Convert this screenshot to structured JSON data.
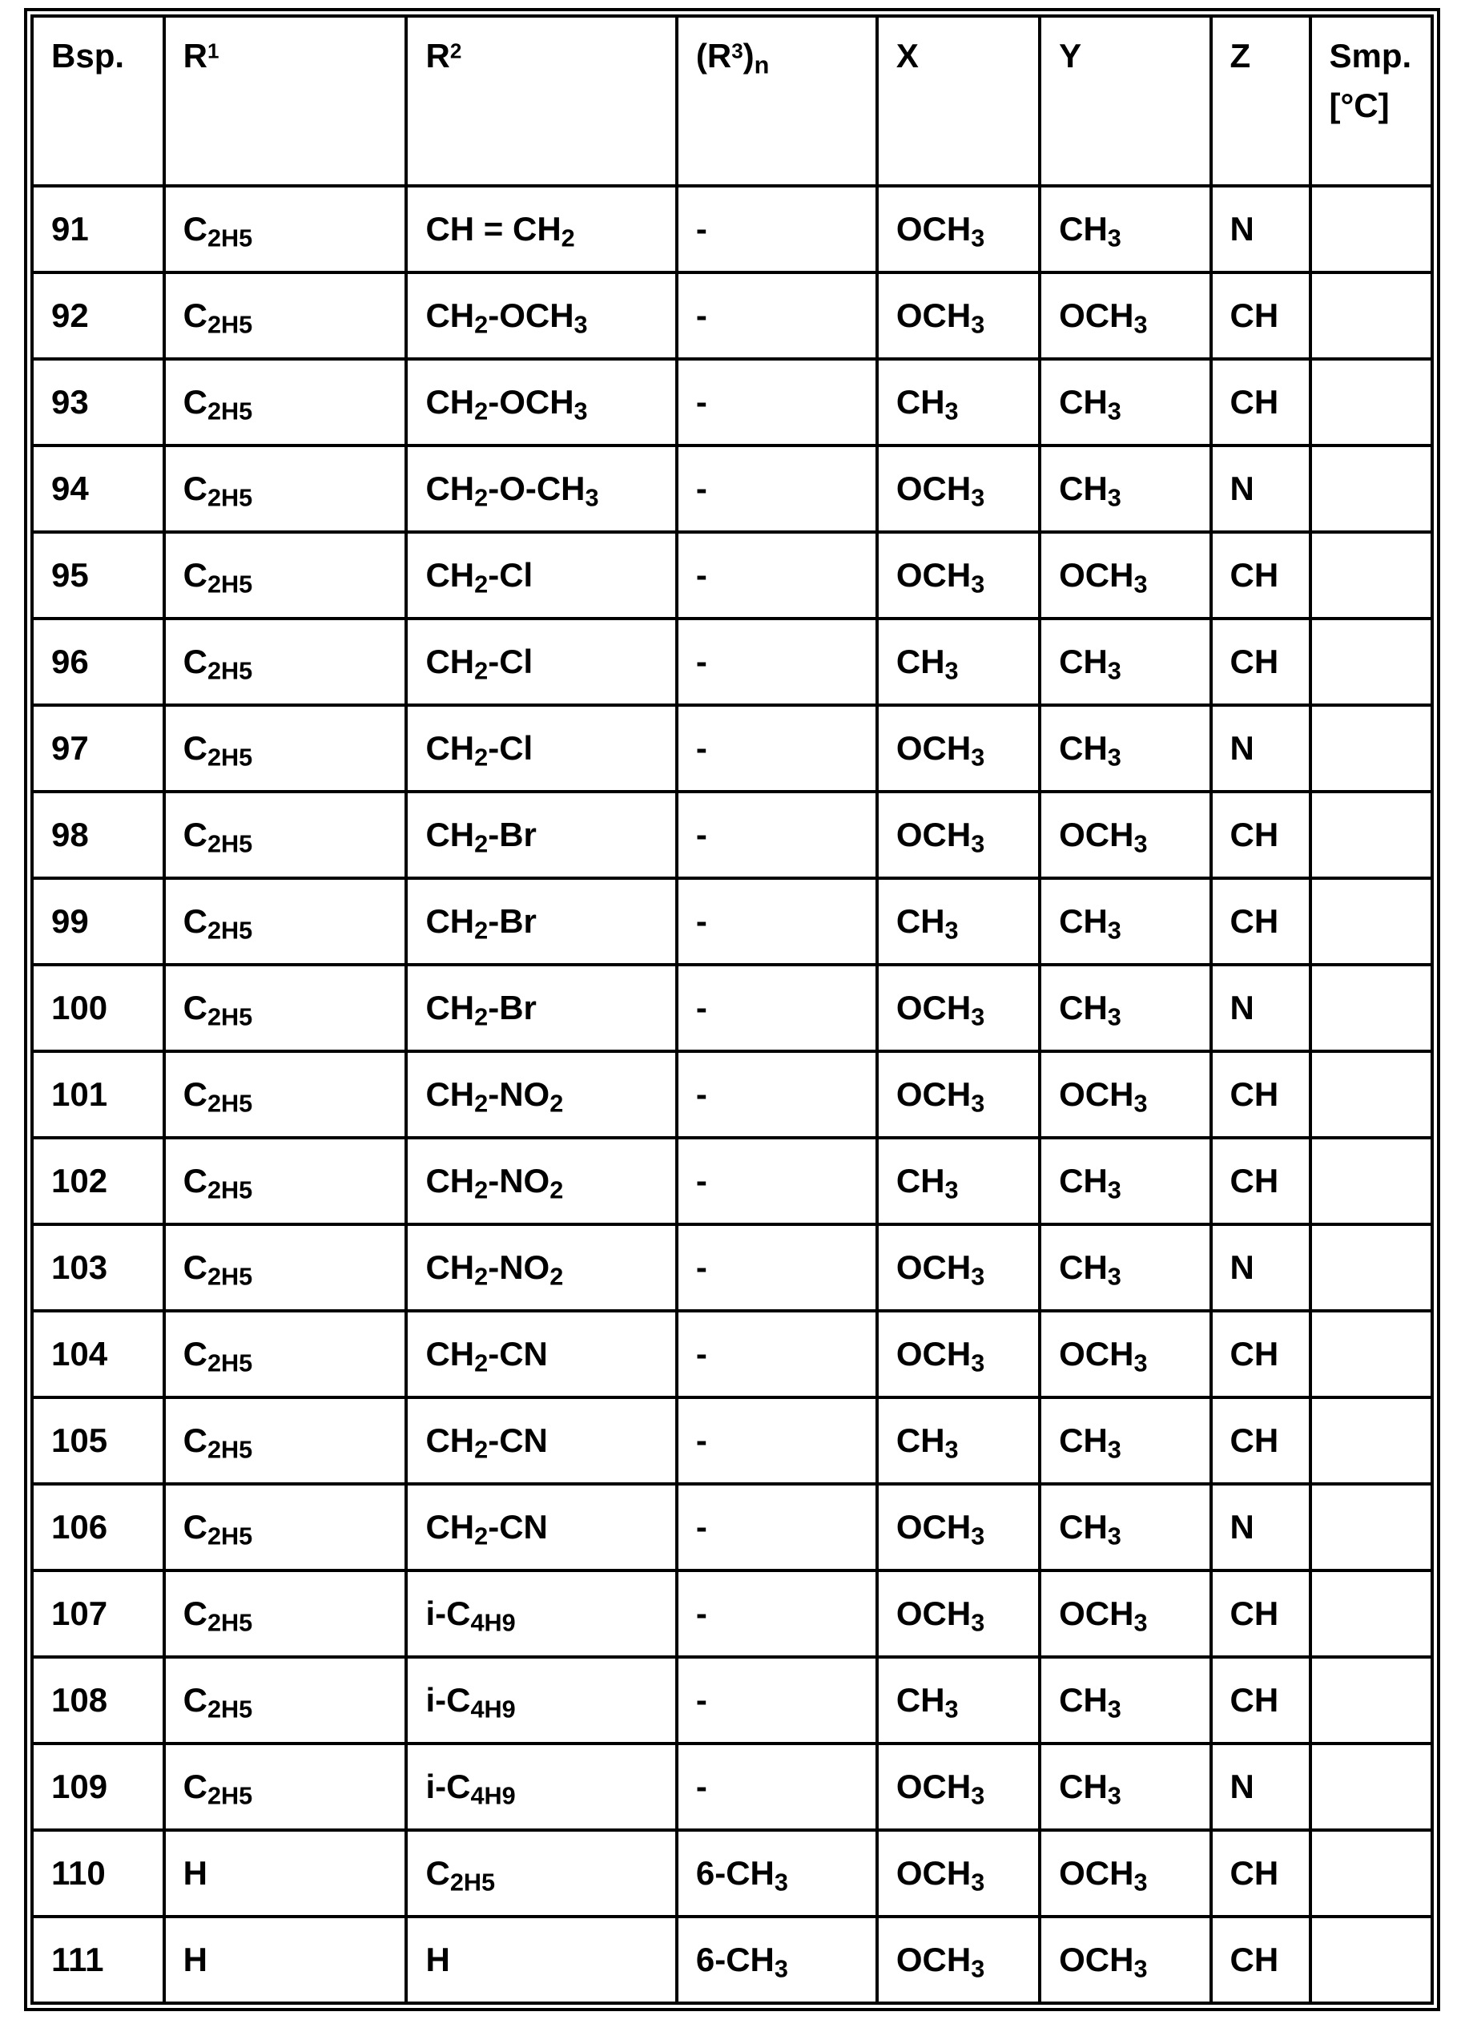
{
  "page": {
    "background_color": "#ffffff",
    "ink_color": "#000000",
    "kind": "scanned patent table page"
  },
  "table": {
    "columns": [
      {
        "key": "bsp",
        "label": "Bsp."
      },
      {
        "key": "r1",
        "label": "R^1"
      },
      {
        "key": "r2",
        "label": "R^2"
      },
      {
        "key": "r3n",
        "label": "(R^3)_n"
      },
      {
        "key": "x",
        "label": "X"
      },
      {
        "key": "y",
        "label": "Y"
      },
      {
        "key": "z",
        "label": "Z"
      },
      {
        "key": "smp",
        "label": "Smp.",
        "label2": "[°C]"
      }
    ],
    "rows": [
      {
        "bsp": "91",
        "r1": "C_2H_5",
        "r2": "CH = CH_2",
        "r3n": "-",
        "x": "OCH_3",
        "y": "CH_3",
        "z": "N",
        "smp": ""
      },
      {
        "bsp": "92",
        "r1": "C_2H_5",
        "r2": "CH_2-OCH_3",
        "r3n": "-",
        "x": "OCH_3",
        "y": "OCH_3",
        "z": "CH",
        "smp": ""
      },
      {
        "bsp": "93",
        "r1": "C_2H_5",
        "r2": "CH_2-OCH_3",
        "r3n": "-",
        "x": "CH_3",
        "y": "CH_3",
        "z": "CH",
        "smp": ""
      },
      {
        "bsp": "94",
        "r1": "C_2H_5",
        "r2": "CH_2-O-CH_3",
        "r3n": "-",
        "x": "OCH_3",
        "y": "CH_3",
        "z": "N",
        "smp": ""
      },
      {
        "bsp": "95",
        "r1": "C_2H_5",
        "r2": "CH_2-Cl",
        "r3n": "-",
        "x": "OCH_3",
        "y": "OCH_3",
        "z": "CH",
        "smp": ""
      },
      {
        "bsp": "96",
        "r1": "C_2H_5",
        "r2": "CH_2-Cl",
        "r3n": "-",
        "x": "CH_3",
        "y": "CH_3",
        "z": "CH",
        "smp": ""
      },
      {
        "bsp": "97",
        "r1": "C_2H_5",
        "r2": "CH_2-Cl",
        "r3n": "-",
        "x": "OCH_3",
        "y": "CH_3",
        "z": "N",
        "smp": ""
      },
      {
        "bsp": "98",
        "r1": "C_2H_5",
        "r2": "CH_2-Br",
        "r3n": "-",
        "x": "OCH_3",
        "y": "OCH_3",
        "z": "CH",
        "smp": ""
      },
      {
        "bsp": "99",
        "r1": "C_2H_5",
        "r2": "CH_2-Br",
        "r3n": "-",
        "x": "CH_3",
        "y": "CH_3",
        "z": "CH",
        "smp": ""
      },
      {
        "bsp": "100",
        "r1": "C_2H_5",
        "r2": "CH_2-Br",
        "r3n": "-",
        "x": "OCH_3",
        "y": "CH_3",
        "z": "N",
        "smp": ""
      },
      {
        "bsp": "101",
        "r1": "C_2H_5",
        "r2": "CH_2-NO_2",
        "r3n": "-",
        "x": "OCH_3",
        "y": "OCH_3",
        "z": "CH",
        "smp": ""
      },
      {
        "bsp": "102",
        "r1": "C_2H_5",
        "r2": "CH_2-NO_2",
        "r3n": "-",
        "x": "CH_3",
        "y": "CH_3",
        "z": "CH",
        "smp": ""
      },
      {
        "bsp": "103",
        "r1": "C_2H_5",
        "r2": "CH_2-NO_2",
        "r3n": "-",
        "x": "OCH_3",
        "y": "CH_3",
        "z": "N",
        "smp": ""
      },
      {
        "bsp": "104",
        "r1": "C_2H_5",
        "r2": "CH_2-CN",
        "r3n": "-",
        "x": "OCH_3",
        "y": "OCH_3",
        "z": "CH",
        "smp": ""
      },
      {
        "bsp": "105",
        "r1": "C_2H_5",
        "r2": "CH_2-CN",
        "r3n": "-",
        "x": "CH_3",
        "y": "CH_3",
        "z": "CH",
        "smp": ""
      },
      {
        "bsp": "106",
        "r1": "C_2H_5",
        "r2": "CH_2-CN",
        "r3n": "-",
        "x": "OCH_3",
        "y": "CH_3",
        "z": "N",
        "smp": ""
      },
      {
        "bsp": "107",
        "r1": "C_2H_5",
        "r2": "i-C_4H_9",
        "r3n": "-",
        "x": "OCH_3",
        "y": "OCH_3",
        "z": "CH",
        "smp": ""
      },
      {
        "bsp": "108",
        "r1": "C_2H_5",
        "r2": "i-C_4H_9",
        "r3n": "-",
        "x": "CH_3",
        "y": "CH_3",
        "z": "CH",
        "smp": ""
      },
      {
        "bsp": "109",
        "r1": "C_2H_5",
        "r2": "i-C_4H_9",
        "r3n": "-",
        "x": "OCH_3",
        "y": "CH_3",
        "z": "N",
        "smp": ""
      },
      {
        "bsp": "110",
        "r1": "H",
        "r2": "C_2H_5",
        "r3n": "6-CH_3",
        "x": "OCH_3",
        "y": "OCH_3",
        "z": "CH",
        "smp": ""
      },
      {
        "bsp": "111",
        "r1": "H",
        "r2": "H",
        "r3n": "6-CH_3",
        "x": "OCH_3",
        "y": "OCH_3",
        "z": "CH",
        "smp": ""
      }
    ]
  }
}
